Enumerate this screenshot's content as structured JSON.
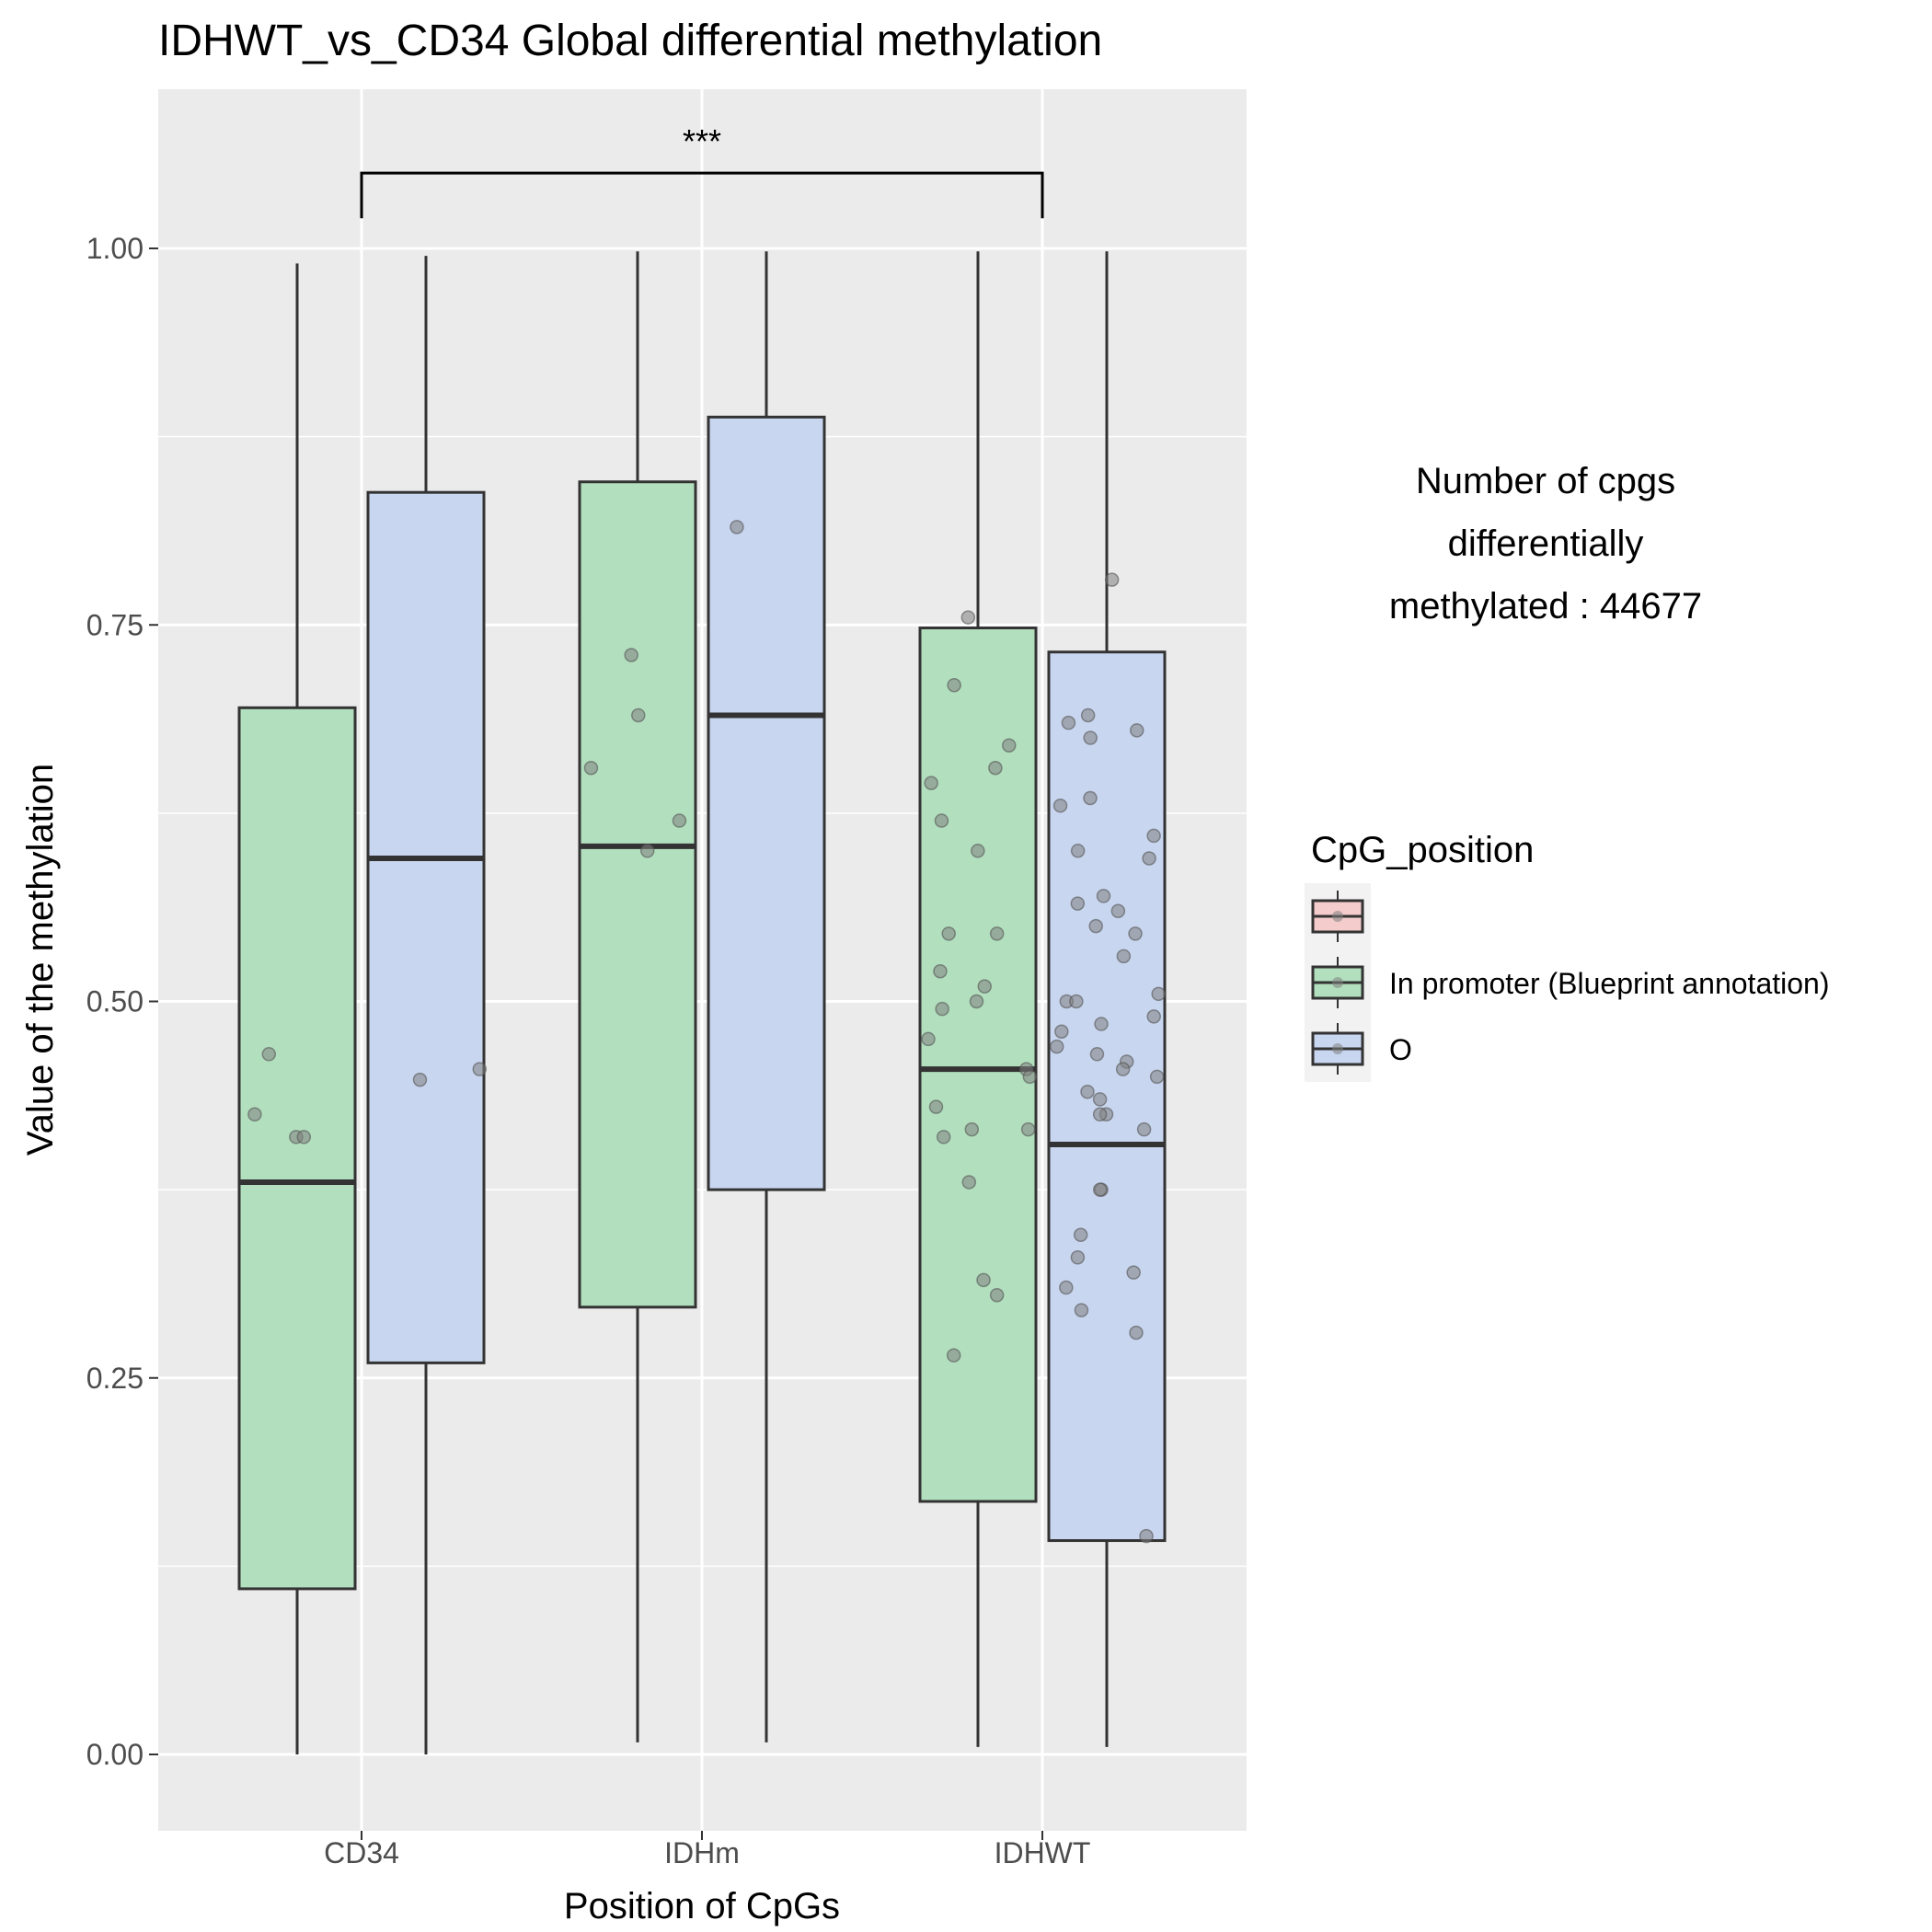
{
  "chart_data": {
    "type": "boxplot",
    "title": "IDHWT_vs_CD34 Global differential methylation",
    "xlabel": "Position of CpGs",
    "ylabel": "Value of the methylation",
    "ylim": [
      -0.05,
      1.1
    ],
    "yticks": [
      0.0,
      0.25,
      0.5,
      0.75,
      1.0
    ],
    "ytick_labels": [
      "0.00",
      "0.25",
      "0.50",
      "0.75",
      "1.00"
    ],
    "categories": [
      "CD34",
      "IDHm",
      "IDHWT"
    ],
    "grid": true,
    "annotation": {
      "lines": [
        "Number of cpgs",
        "differentially",
        "methylated : 44677"
      ]
    },
    "significance": {
      "from": "CD34",
      "to": "IDHWT",
      "label": "***",
      "y": 1.05
    },
    "legend": {
      "title": "CpG_position",
      "placement": "right",
      "entries": [
        {
          "label": "",
          "color": "#f4cccc"
        },
        {
          "label": "In promoter (Blueprint annotation)",
          "color": "#b2dfbe"
        },
        {
          "label": "O",
          "color": "#c8d6f0"
        }
      ]
    },
    "series": [
      {
        "name": "In promoter (Blueprint annotation)",
        "color": "#b2dfbe",
        "boxes": [
          {
            "category": "CD34",
            "min": 0.0,
            "q1": 0.11,
            "median": 0.38,
            "q3": 0.695,
            "max": 0.99,
            "points": [
              0.41,
              0.41,
              0.425,
              0.465
            ]
          },
          {
            "category": "IDHm",
            "min": 0.008,
            "q1": 0.297,
            "median": 0.603,
            "q3": 0.845,
            "max": 0.998,
            "points": [
              0.73,
              0.69,
              0.655,
              0.62,
              0.6
            ]
          },
          {
            "category": "IDHWT",
            "min": 0.005,
            "q1": 0.168,
            "median": 0.455,
            "q3": 0.748,
            "max": 0.998,
            "points": [
              0.755,
              0.71,
              0.67,
              0.655,
              0.645,
              0.6,
              0.545,
              0.545,
              0.52,
              0.51,
              0.5,
              0.495,
              0.475,
              0.455,
              0.45,
              0.43,
              0.415,
              0.415,
              0.41,
              0.38,
              0.315,
              0.305,
              0.265,
              0.62
            ]
          }
        ]
      },
      {
        "name": "O",
        "color": "#c8d6f0",
        "boxes": [
          {
            "category": "CD34",
            "min": 0.0,
            "q1": 0.26,
            "median": 0.595,
            "q3": 0.838,
            "max": 0.995,
            "points": [
              0.455,
              0.448
            ]
          },
          {
            "category": "IDHm",
            "min": 0.008,
            "q1": 0.375,
            "median": 0.69,
            "q3": 0.888,
            "max": 0.998,
            "points": [
              0.815
            ]
          },
          {
            "category": "IDHWT",
            "min": 0.005,
            "q1": 0.142,
            "median": 0.405,
            "q3": 0.732,
            "max": 0.998,
            "points": [
              0.78,
              0.69,
              0.685,
              0.68,
              0.675,
              0.635,
              0.63,
              0.61,
              0.6,
              0.595,
              0.57,
              0.565,
              0.56,
              0.55,
              0.545,
              0.53,
              0.5,
              0.5,
              0.485,
              0.48,
              0.47,
              0.465,
              0.46,
              0.455,
              0.45,
              0.44,
              0.435,
              0.425,
              0.425,
              0.415,
              0.375,
              0.375,
              0.345,
              0.33,
              0.32,
              0.31,
              0.295,
              0.28,
              0.145,
              0.505,
              0.49
            ]
          }
        ]
      }
    ]
  }
}
